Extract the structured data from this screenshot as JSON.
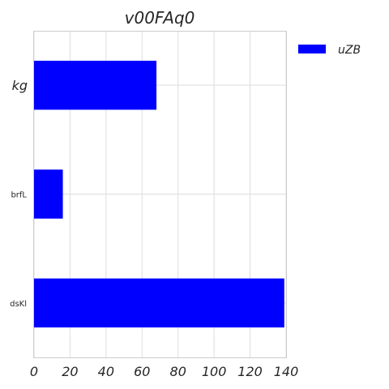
{
  "chart_data": {
    "type": "bar",
    "orientation": "horizontal",
    "title": "v00FAq0",
    "categories": [
      "kg",
      "brfL",
      "dsKl"
    ],
    "series": [
      {
        "name": "uZB",
        "values": [
          68,
          16,
          139
        ],
        "color": "#0000ff"
      }
    ],
    "xlim": [
      0,
      140
    ],
    "xticks": [
      0,
      20,
      40,
      60,
      80,
      100,
      120,
      140
    ],
    "xlabel": "",
    "ylabel": "",
    "grid": true,
    "legend": {
      "position": "outside-top-right"
    }
  }
}
